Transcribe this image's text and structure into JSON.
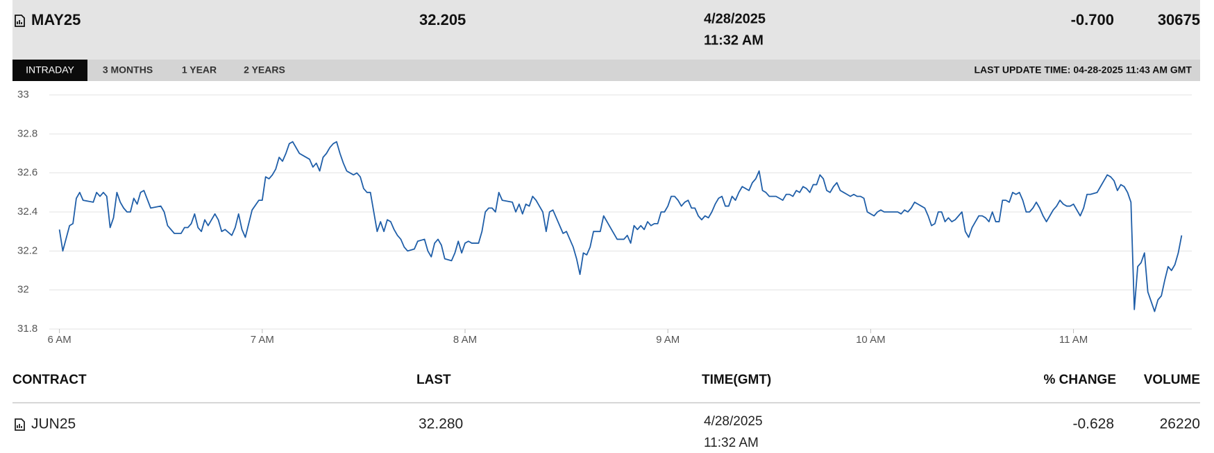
{
  "header": {
    "contract": "MAY25",
    "last": "32.205",
    "date": "4/28/2025",
    "time": "11:32 AM",
    "change": "-0.700",
    "volume": "30675"
  },
  "tabs": [
    "INTRADAY",
    "3 MONTHS",
    "1 YEAR",
    "2 YEARS"
  ],
  "last_update": "LAST UPDATE TIME: 04-28-2025 11:43 AM GMT",
  "chart_data": {
    "type": "line",
    "color": "#1f5ea8",
    "grid": true,
    "xlim": [
      357,
      695
    ],
    "xticks": [
      {
        "value": 360,
        "label": "6 AM"
      },
      {
        "value": 420,
        "label": "7 AM"
      },
      {
        "value": 480,
        "label": "8 AM"
      },
      {
        "value": 540,
        "label": "9 AM"
      },
      {
        "value": 600,
        "label": "10 AM"
      },
      {
        "value": 660,
        "label": "11 AM"
      }
    ],
    "ylim": [
      31.8,
      33
    ],
    "yticks": [
      31.8,
      32,
      32.2,
      32.4,
      32.6,
      32.8,
      33
    ],
    "x": [
      360,
      361,
      363,
      364,
      365,
      366,
      367,
      370,
      371,
      372,
      373,
      374,
      375,
      376,
      377,
      378,
      379,
      380,
      381,
      382,
      383,
      384,
      385,
      387,
      390,
      391,
      392,
      393,
      394,
      396,
      397,
      398,
      399,
      400,
      401,
      402,
      403,
      404,
      406,
      407,
      408,
      409,
      411,
      412,
      413,
      414,
      415,
      416,
      417,
      419,
      420,
      421,
      422,
      423,
      424,
      425,
      426,
      427,
      428,
      429,
      431,
      432,
      434,
      435,
      436,
      437,
      438,
      439,
      440,
      441,
      442,
      443,
      444,
      445,
      446,
      447,
      448,
      449,
      450,
      451,
      452,
      453,
      454,
      455,
      456,
      457,
      458,
      459,
      460,
      461,
      462,
      463,
      465,
      466,
      468,
      469,
      470,
      471,
      472,
      473,
      474,
      476,
      477,
      478,
      479,
      480,
      481,
      482,
      484,
      485,
      486,
      487,
      488,
      489,
      490,
      491,
      494,
      495,
      496,
      497,
      498,
      499,
      500,
      501,
      502,
      503,
      504,
      505,
      506,
      507,
      508,
      509,
      510,
      511,
      512,
      513,
      514,
      515,
      516,
      517,
      518,
      520,
      521,
      522,
      523,
      525,
      527,
      528,
      529,
      530,
      531,
      532,
      533,
      534,
      535,
      536,
      537,
      538,
      539,
      540,
      541,
      542,
      543,
      544,
      545,
      546,
      547,
      548,
      549,
      550,
      551,
      552,
      553,
      554,
      555,
      556,
      557,
      558,
      559,
      560,
      561,
      562,
      563,
      564,
      565,
      566,
      567,
      568,
      569,
      570,
      572,
      573,
      574,
      575,
      576,
      577,
      578,
      579,
      580,
      581,
      582,
      583,
      584,
      585,
      586,
      587,
      588,
      589,
      590,
      591,
      592,
      593,
      594,
      595,
      596,
      597,
      598,
      599,
      600,
      601,
      602,
      603,
      604,
      606,
      607,
      608,
      609,
      610,
      611,
      612,
      613,
      614,
      615,
      616,
      617,
      618,
      619,
      620,
      621,
      622,
      623,
      624,
      625,
      626,
      627,
      628,
      629,
      630,
      631,
      632,
      633,
      634,
      635,
      636,
      637,
      638,
      639,
      640,
      641,
      642,
      643,
      644,
      645,
      646,
      647,
      648,
      649,
      650,
      651,
      652,
      653,
      654,
      655,
      656,
      657,
      658,
      659,
      660,
      661,
      662,
      663,
      664,
      665,
      667,
      668,
      669,
      670,
      671,
      672,
      673,
      674,
      675,
      676,
      677,
      678,
      679,
      680,
      681,
      682,
      683,
      684,
      685,
      686,
      687,
      688,
      689,
      690,
      691,
      692
    ],
    "values": [
      32.31,
      32.2,
      32.33,
      32.34,
      32.47,
      32.5,
      32.46,
      32.45,
      32.5,
      32.48,
      32.5,
      32.48,
      32.32,
      32.37,
      32.5,
      32.45,
      32.42,
      32.4,
      32.4,
      32.47,
      32.44,
      32.5,
      32.51,
      32.42,
      32.43,
      32.4,
      32.33,
      32.31,
      32.29,
      32.29,
      32.32,
      32.32,
      32.34,
      32.39,
      32.32,
      32.3,
      32.36,
      32.33,
      32.39,
      32.36,
      32.3,
      32.31,
      32.28,
      32.32,
      32.39,
      32.31,
      32.27,
      32.34,
      32.41,
      32.46,
      32.46,
      32.58,
      32.57,
      32.59,
      32.62,
      32.68,
      32.66,
      32.7,
      32.75,
      32.76,
      32.7,
      32.69,
      32.67,
      32.63,
      32.65,
      32.61,
      32.68,
      32.7,
      32.73,
      32.75,
      32.76,
      32.7,
      32.65,
      32.61,
      32.6,
      32.59,
      32.6,
      32.58,
      32.52,
      32.5,
      32.5,
      32.4,
      32.3,
      32.35,
      32.3,
      32.36,
      32.35,
      32.31,
      32.28,
      32.26,
      32.22,
      32.2,
      32.21,
      32.25,
      32.26,
      32.2,
      32.17,
      32.24,
      32.26,
      32.23,
      32.16,
      32.15,
      32.19,
      32.25,
      32.19,
      32.24,
      32.25,
      32.24,
      32.24,
      32.3,
      32.4,
      32.42,
      32.42,
      32.4,
      32.5,
      32.46,
      32.45,
      32.4,
      32.44,
      32.39,
      32.44,
      32.43,
      32.48,
      32.46,
      32.43,
      32.4,
      32.3,
      32.4,
      32.41,
      32.37,
      32.33,
      32.29,
      32.3,
      32.26,
      32.22,
      32.16,
      32.08,
      32.19,
      32.18,
      32.22,
      32.3,
      32.3,
      32.38,
      32.35,
      32.32,
      32.26,
      32.26,
      32.28,
      32.24,
      32.33,
      32.31,
      32.33,
      32.31,
      32.35,
      32.33,
      32.34,
      32.34,
      32.4,
      32.4,
      32.43,
      32.48,
      32.48,
      32.46,
      32.43,
      32.45,
      32.46,
      32.42,
      32.42,
      32.38,
      32.36,
      32.38,
      32.37,
      32.4,
      32.44,
      32.47,
      32.48,
      32.43,
      32.43,
      32.48,
      32.46,
      32.5,
      32.53,
      32.52,
      32.51,
      32.55,
      32.57,
      32.61,
      32.51,
      32.5,
      32.48,
      32.48,
      32.47,
      32.46,
      32.49,
      32.49,
      32.48,
      32.51,
      32.5,
      32.53,
      32.52,
      32.5,
      32.54,
      32.54,
      32.59,
      32.57,
      32.51,
      32.5,
      32.53,
      32.55,
      32.51,
      32.5,
      32.49,
      32.48,
      32.49,
      32.48,
      32.48,
      32.47,
      32.4,
      32.39,
      32.38,
      32.4,
      32.41,
      32.4,
      32.4,
      32.4,
      32.4,
      32.39,
      32.41,
      32.4,
      32.42,
      32.45,
      32.44,
      32.43,
      32.42,
      32.38,
      32.33,
      32.34,
      32.4,
      32.4,
      32.35,
      32.37,
      32.35,
      32.36,
      32.38,
      32.4,
      32.3,
      32.27,
      32.32,
      32.35,
      32.38,
      32.38,
      32.37,
      32.35,
      32.4,
      32.35,
      32.35,
      32.46,
      32.46,
      32.45,
      32.5,
      32.49,
      32.5,
      32.46,
      32.4,
      32.4,
      32.42,
      32.45,
      32.42,
      32.38,
      32.35,
      32.38,
      32.41,
      32.43,
      32.46,
      32.44,
      32.43,
      32.43,
      32.44,
      32.41,
      32.38,
      32.42,
      32.49,
      32.49,
      32.5,
      32.53,
      32.56,
      32.59,
      32.58,
      32.56,
      32.51,
      32.54,
      32.53,
      32.5,
      32.45,
      31.9,
      32.12,
      32.14,
      32.19,
      31.99,
      31.94,
      31.89,
      31.95,
      31.97,
      32.05,
      32.12,
      32.1,
      32.13,
      32.19,
      32.28
    ]
  },
  "table": {
    "columns": [
      "CONTRACT",
      "LAST",
      "TIME(GMT)",
      "% CHANGE",
      "VOLUME"
    ],
    "rows": [
      {
        "contract": "JUN25",
        "last": "32.280",
        "date": "4/28/2025",
        "time": "11:32 AM",
        "change": "-0.628",
        "volume": "26220"
      }
    ]
  }
}
